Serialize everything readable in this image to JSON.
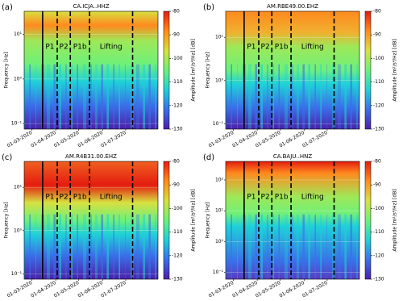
{
  "chart_data": [
    {
      "type": "spectrogram",
      "panel_label": "(a)",
      "title": "CA.ICJA..HHZ",
      "ylabel": "Frequency [Hz]",
      "colorbar_label": "Amplitude [m²/s⁴/Hz] [dB]",
      "log_y": true,
      "ylim": [
        0.075,
        33
      ],
      "yticks": [
        {
          "value": 0.1,
          "label": "10⁻¹"
        },
        {
          "value": 1,
          "label": "10⁰"
        },
        {
          "value": 10,
          "label": "10¹"
        }
      ],
      "xlim": [
        "2020-02-20",
        "2020-08-12"
      ],
      "xticks": [
        {
          "value": "2020-03-01",
          "label": "01-03-2020"
        },
        {
          "value": "2020-04-01",
          "label": "01-04-2020"
        },
        {
          "value": "2020-05-01",
          "label": "01-05-2020"
        },
        {
          "value": "2020-06-01",
          "label": "01-06-2020"
        },
        {
          "value": "2020-07-01",
          "label": "01-07-2020"
        }
      ],
      "clim": [
        -130,
        -80
      ],
      "cticks": [
        -130,
        -120,
        -110,
        -100,
        -90,
        -80
      ],
      "colormap": [
        "#4b1fa8",
        "#3a6fe8",
        "#1fd0d8",
        "#6ef07a",
        "#d8e040",
        "#ff8a1e",
        "#e41c10"
      ],
      "events": [
        {
          "date": "2020-03-15",
          "style": "solid"
        },
        {
          "date": "2020-04-03",
          "style": "dashed"
        },
        {
          "date": "2020-04-20",
          "style": "dashed"
        },
        {
          "date": "2020-05-15",
          "style": "dashed"
        },
        {
          "date": "2020-07-10",
          "style": "dashed"
        }
      ],
      "phases": [
        "P1",
        "P2",
        "P1b",
        "Lifting"
      ]
    },
    {
      "type": "spectrogram",
      "panel_label": "(b)",
      "title": "AM.RBE49.00.EHZ",
      "ylabel": "Frequency [Hz]",
      "colorbar_label": "Amplitude [m²/s⁴/Hz] [dB]",
      "log_y": true,
      "ylim": [
        0.075,
        40
      ],
      "yticks": [
        {
          "value": 0.1,
          "label": "10⁻¹"
        },
        {
          "value": 1,
          "label": "10⁰"
        },
        {
          "value": 10,
          "label": "10¹"
        }
      ],
      "xlim": [
        "2020-02-20",
        "2020-08-12"
      ],
      "xticks": [
        {
          "value": "2020-03-01",
          "label": "01-03-2020"
        },
        {
          "value": "2020-04-01",
          "label": "01-04-2020"
        },
        {
          "value": "2020-05-01",
          "label": "01-05-2020"
        },
        {
          "value": "2020-06-01",
          "label": "01-06-2020"
        },
        {
          "value": "2020-07-01",
          "label": "01-07-2020"
        }
      ],
      "clim": [
        -130,
        -80
      ],
      "cticks": [
        -130,
        -120,
        -110,
        -100,
        -90,
        -80
      ],
      "colormap": [
        "#4b1fa8",
        "#3a6fe8",
        "#1fd0d8",
        "#6ef07a",
        "#d8e040",
        "#ff8a1e",
        "#e41c10"
      ],
      "events": [
        {
          "date": "2020-03-15",
          "style": "solid"
        },
        {
          "date": "2020-04-03",
          "style": "dashed"
        },
        {
          "date": "2020-04-20",
          "style": "dashed"
        },
        {
          "date": "2020-05-15",
          "style": "dashed"
        },
        {
          "date": "2020-07-10",
          "style": "dashed"
        }
      ],
      "phases": [
        "P1",
        "P2",
        "P1b",
        "Lifting"
      ]
    },
    {
      "type": "spectrogram",
      "panel_label": "(c)",
      "title": "AM.R4B31.00.EHZ",
      "ylabel": "Frequency [Hz]",
      "colorbar_label": "Amplitude [m²/s⁴/Hz] [dB]",
      "log_y": true,
      "ylim": [
        0.075,
        40
      ],
      "yticks": [
        {
          "value": 0.1,
          "label": "10⁻¹"
        },
        {
          "value": 1,
          "label": "10⁰"
        },
        {
          "value": 10,
          "label": "10¹"
        }
      ],
      "xlim": [
        "2020-02-20",
        "2020-08-12"
      ],
      "xticks": [
        {
          "value": "2020-03-01",
          "label": "01-03-2020"
        },
        {
          "value": "2020-04-01",
          "label": "01-04-2020"
        },
        {
          "value": "2020-05-01",
          "label": "01-05-2020"
        },
        {
          "value": "2020-06-01",
          "label": "01-06-2020"
        },
        {
          "value": "2020-07-01",
          "label": "01-07-2020"
        }
      ],
      "clim": [
        -130,
        -80
      ],
      "cticks": [
        -130,
        -120,
        -110,
        -100,
        -90,
        -80
      ],
      "colormap": [
        "#4b1fa8",
        "#3a6fe8",
        "#1fd0d8",
        "#6ef07a",
        "#d8e040",
        "#ff8a1e",
        "#e41c10"
      ],
      "events": [
        {
          "date": "2020-03-15",
          "style": "solid"
        },
        {
          "date": "2020-04-03",
          "style": "dashed"
        },
        {
          "date": "2020-04-20",
          "style": "dashed"
        },
        {
          "date": "2020-05-15",
          "style": "dashed"
        },
        {
          "date": "2020-07-10",
          "style": "dashed"
        }
      ],
      "phases": [
        "P1",
        "P2",
        "P1b",
        "Lifting"
      ]
    },
    {
      "type": "spectrogram",
      "panel_label": "(d)",
      "title": "CA.BAJU..HNZ",
      "ylabel": "Frequency [Hz]",
      "colorbar_label": "Amplitude [m²/s⁴/Hz] [dB]",
      "log_y": true,
      "ylim": [
        0.06,
        400
      ],
      "yticks": [
        {
          "value": 0.1,
          "label": "10⁻¹"
        },
        {
          "value": 1,
          "label": "10⁰"
        },
        {
          "value": 10,
          "label": "10¹"
        },
        {
          "value": 100,
          "label": "10²"
        }
      ],
      "xlim": [
        "2020-02-20",
        "2020-08-12"
      ],
      "xticks": [
        {
          "value": "2020-03-01",
          "label": "01-03-2020"
        },
        {
          "value": "2020-04-01",
          "label": "01-04-2020"
        },
        {
          "value": "2020-05-01",
          "label": "01-05-2020"
        },
        {
          "value": "2020-06-01",
          "label": "01-06-2020"
        },
        {
          "value": "2020-07-01",
          "label": "01-07-2020"
        }
      ],
      "clim": [
        -130,
        -80
      ],
      "cticks": [
        -130,
        -120,
        -110,
        -100,
        -90,
        -80
      ],
      "colormap": [
        "#4b1fa8",
        "#3a6fe8",
        "#1fd0d8",
        "#6ef07a",
        "#d8e040",
        "#ff8a1e",
        "#e41c10"
      ],
      "events": [
        {
          "date": "2020-03-15",
          "style": "solid"
        },
        {
          "date": "2020-04-03",
          "style": "dashed"
        },
        {
          "date": "2020-04-20",
          "style": "dashed"
        },
        {
          "date": "2020-05-15",
          "style": "dashed"
        },
        {
          "date": "2020-07-10",
          "style": "dashed"
        }
      ],
      "phases": [
        "P1",
        "P2",
        "P1b",
        "Lifting"
      ]
    }
  ]
}
